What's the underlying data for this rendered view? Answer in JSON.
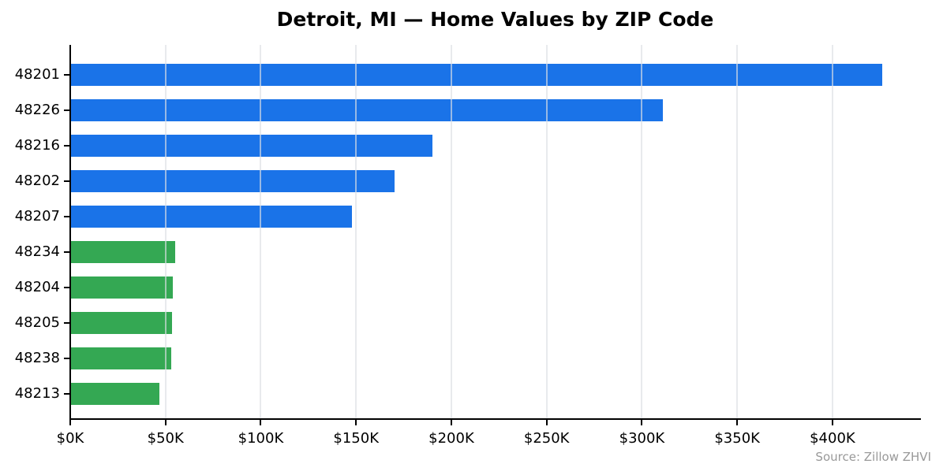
{
  "colors": {
    "bar_blue": "#1a73e8",
    "bar_green": "#34a853",
    "axis": "#000000",
    "grid": "#dcdfe4",
    "tick_text": "#000000",
    "source_text": "#999999",
    "background": "#ffffff"
  },
  "chart_data": {
    "type": "bar",
    "orientation": "horizontal",
    "title": "Detroit, MI — Home Values by ZIP Code",
    "source_note": "Source: Zillow ZHVI",
    "xlabel": "",
    "ylabel": "",
    "categories": [
      "48201",
      "48226",
      "48216",
      "48202",
      "48207",
      "48234",
      "48204",
      "48205",
      "48238",
      "48213"
    ],
    "values_usd_thousands": [
      426,
      311,
      190,
      170,
      148,
      55,
      54,
      53.5,
      53,
      47
    ],
    "bar_colors": [
      "#1a73e8",
      "#1a73e8",
      "#1a73e8",
      "#1a73e8",
      "#1a73e8",
      "#34a853",
      "#34a853",
      "#34a853",
      "#34a853",
      "#34a853"
    ],
    "x_tick_values": [
      0,
      50,
      100,
      150,
      200,
      250,
      300,
      350,
      400
    ],
    "x_tick_labels": [
      "$0K",
      "$50K",
      "$100K",
      "$150K",
      "$200K",
      "$250K",
      "$300K",
      "$350K",
      "$400K"
    ],
    "xlim": [
      0,
      446
    ],
    "grid": "vertical",
    "legend": "none"
  }
}
